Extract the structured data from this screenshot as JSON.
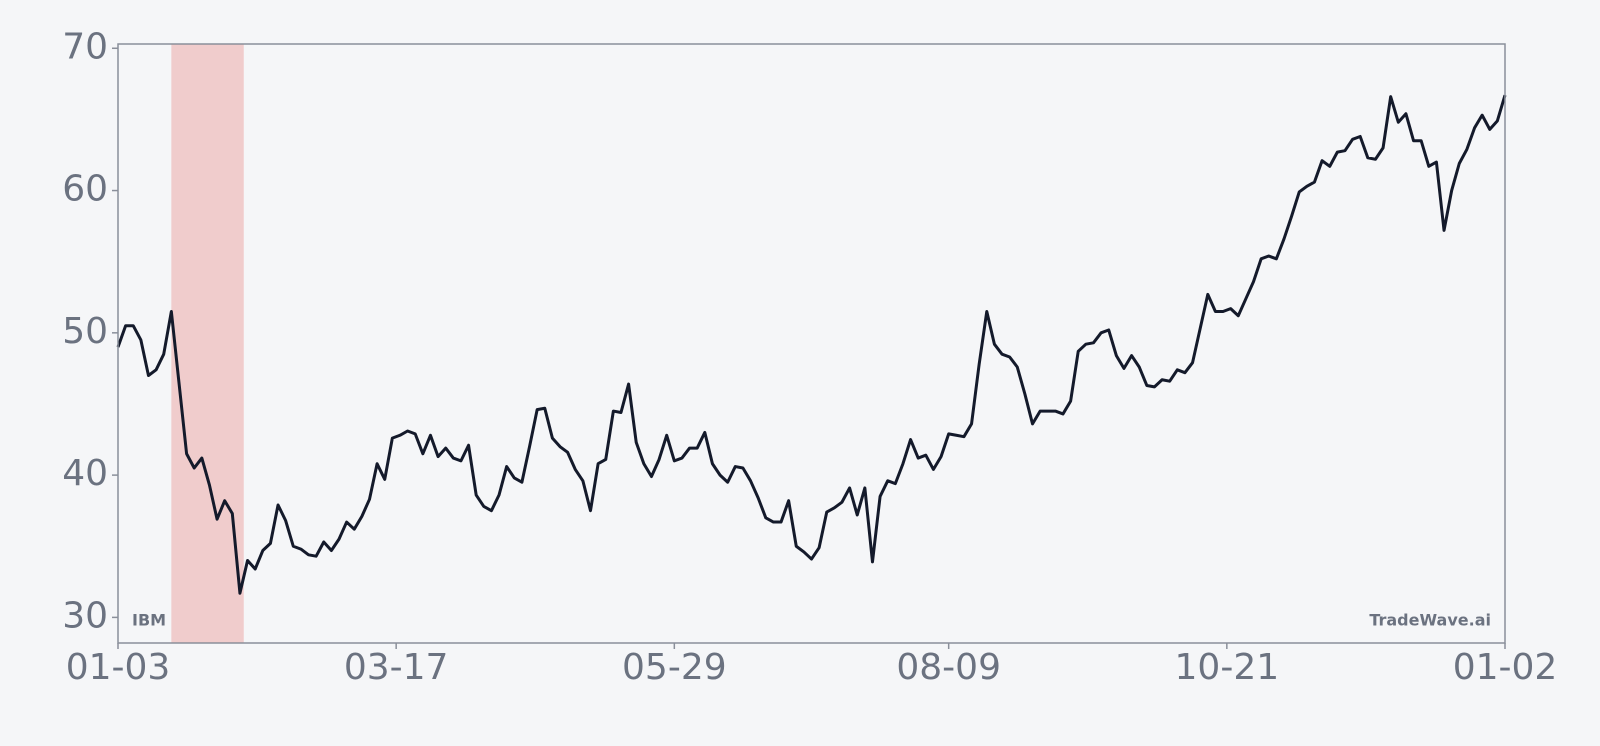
{
  "chart_data": {
    "type": "line",
    "ticker": "IBM",
    "watermark": "TradeWave.ai",
    "color": "#141a2b",
    "highlight": {
      "start": "01-17",
      "end": "02-05",
      "color": "#f0cccc"
    },
    "xlim": [
      "01-03",
      "01-02"
    ],
    "xticks": [
      "01-03",
      "03-17",
      "05-29",
      "08-09",
      "10-21",
      "01-02"
    ],
    "ylim": [
      28.2,
      70.3
    ],
    "yticks": [
      30,
      40,
      50,
      60,
      70
    ],
    "x": [
      "01-03",
      "01-05",
      "01-07",
      "01-09",
      "01-11",
      "01-13",
      "01-15",
      "01-17",
      "01-19",
      "01-21",
      "01-23",
      "01-25",
      "01-27",
      "01-29",
      "01-31",
      "02-02",
      "02-04",
      "02-06",
      "02-08",
      "02-10",
      "02-12",
      "02-14",
      "02-16",
      "02-18",
      "02-20",
      "02-22",
      "02-24",
      "02-26",
      "02-28",
      "03-02",
      "03-04",
      "03-06",
      "03-08",
      "03-10",
      "03-12",
      "03-14",
      "03-16",
      "03-18",
      "03-20",
      "03-22",
      "03-24",
      "03-26",
      "03-28",
      "03-30",
      "04-01",
      "04-03",
      "04-05",
      "04-07",
      "04-09",
      "04-11",
      "04-13",
      "04-15",
      "04-17",
      "04-19",
      "04-21",
      "04-23",
      "04-25",
      "04-27",
      "04-29",
      "05-01",
      "05-03",
      "05-05",
      "05-07",
      "05-09",
      "05-11",
      "05-13",
      "05-15",
      "05-17",
      "05-19",
      "05-21",
      "05-23",
      "05-25",
      "05-27",
      "05-29",
      "05-31",
      "06-02",
      "06-04",
      "06-06",
      "06-08",
      "06-10",
      "06-12",
      "06-14",
      "06-16",
      "06-18",
      "06-20",
      "06-22",
      "06-24",
      "06-26",
      "06-28",
      "06-30",
      "07-02",
      "07-04",
      "07-06",
      "07-08",
      "07-10",
      "07-12",
      "07-14",
      "07-16",
      "07-18",
      "07-20",
      "07-22",
      "07-24",
      "07-26",
      "07-28",
      "07-30",
      "08-01",
      "08-03",
      "08-05",
      "08-07",
      "08-09",
      "08-11",
      "08-13",
      "08-15",
      "08-17",
      "08-19",
      "08-21",
      "08-23",
      "08-25",
      "08-27",
      "08-29",
      "08-31",
      "09-02",
      "09-04",
      "09-06",
      "09-08",
      "09-10",
      "09-12",
      "09-14",
      "09-16",
      "09-18",
      "09-20",
      "09-22",
      "09-24",
      "09-26",
      "09-28",
      "09-30",
      "10-02",
      "10-04",
      "10-06",
      "10-08",
      "10-10",
      "10-12",
      "10-14",
      "10-16",
      "10-18",
      "10-20",
      "10-22",
      "10-24",
      "10-26",
      "10-28",
      "10-30",
      "11-01",
      "11-03",
      "11-05",
      "11-07",
      "11-09",
      "11-11",
      "11-13",
      "11-15",
      "11-17",
      "11-19",
      "11-21",
      "11-23",
      "11-25",
      "11-27",
      "11-29",
      "12-01",
      "12-03",
      "12-05",
      "12-07",
      "12-09",
      "12-11",
      "12-13",
      "12-15",
      "12-17",
      "12-19",
      "12-21",
      "12-23",
      "12-25",
      "12-27",
      "12-29",
      "12-31",
      "01-02"
    ],
    "values": [
      49,
      50.5,
      50.5,
      49.5,
      47,
      47.4,
      48.5,
      51.5,
      46.5,
      41.5,
      40.5,
      41.2,
      39.3,
      36.9,
      38.2,
      37.3,
      31.7,
      34,
      33.4,
      34.7,
      35.2,
      37.9,
      36.8,
      35,
      34.8,
      34.4,
      34.3,
      35.3,
      34.7,
      35.5,
      36.7,
      36.2,
      37.1,
      38.3,
      40.8,
      39.7,
      42.6,
      42.8,
      43.1,
      42.9,
      41.5,
      42.8,
      41.3,
      41.9,
      41.2,
      41,
      42.1,
      38.6,
      37.8,
      37.5,
      38.6,
      40.6,
      39.8,
      39.5,
      42,
      44.6,
      44.7,
      42.6,
      42,
      41.6,
      40.4,
      39.6,
      37.5,
      40.8,
      41.1,
      44.5,
      44.4,
      46.4,
      42.3,
      40.8,
      39.9,
      41.1,
      42.8,
      41,
      41.2,
      41.9,
      41.9,
      43,
      40.8,
      40,
      39.5,
      40.6,
      40.5,
      39.6,
      38.4,
      37,
      36.7,
      36.7,
      38.2,
      35,
      34.6,
      34.1,
      34.9,
      37.4,
      37.7,
      38.1,
      39.1,
      37.2,
      39.1,
      33.9,
      38.5,
      39.6,
      39.4,
      40.8,
      42.5,
      41.2,
      41.4,
      40.4,
      41.3,
      42.9,
      42.8,
      42.7,
      43.6,
      47.8,
      51.5,
      49.2,
      48.5,
      48.3,
      47.6,
      45.7,
      43.6,
      44.5,
      44.5,
      44.5,
      44.3,
      45.2,
      48.7,
      49.2,
      49.3,
      50,
      50.2,
      48.4,
      47.5,
      48.4,
      47.6,
      46.3,
      46.2,
      46.7,
      46.6,
      47.4,
      47.2,
      47.9,
      50.3,
      52.7,
      51.5,
      51.5,
      51.7,
      51.2,
      52.4,
      53.6,
      55.2,
      55.4,
      55.2,
      56.6,
      58.2,
      59.9,
      60.3,
      60.6,
      62.1,
      61.7,
      62.7,
      62.8,
      63.6,
      63.8,
      62.3,
      62.2,
      63,
      66.6,
      64.8,
      65.4,
      63.5,
      63.5,
      61.7,
      62,
      57.2,
      60,
      61.9,
      62.9,
      64.4,
      65.3,
      64.3,
      64.9,
      66.7
    ]
  }
}
